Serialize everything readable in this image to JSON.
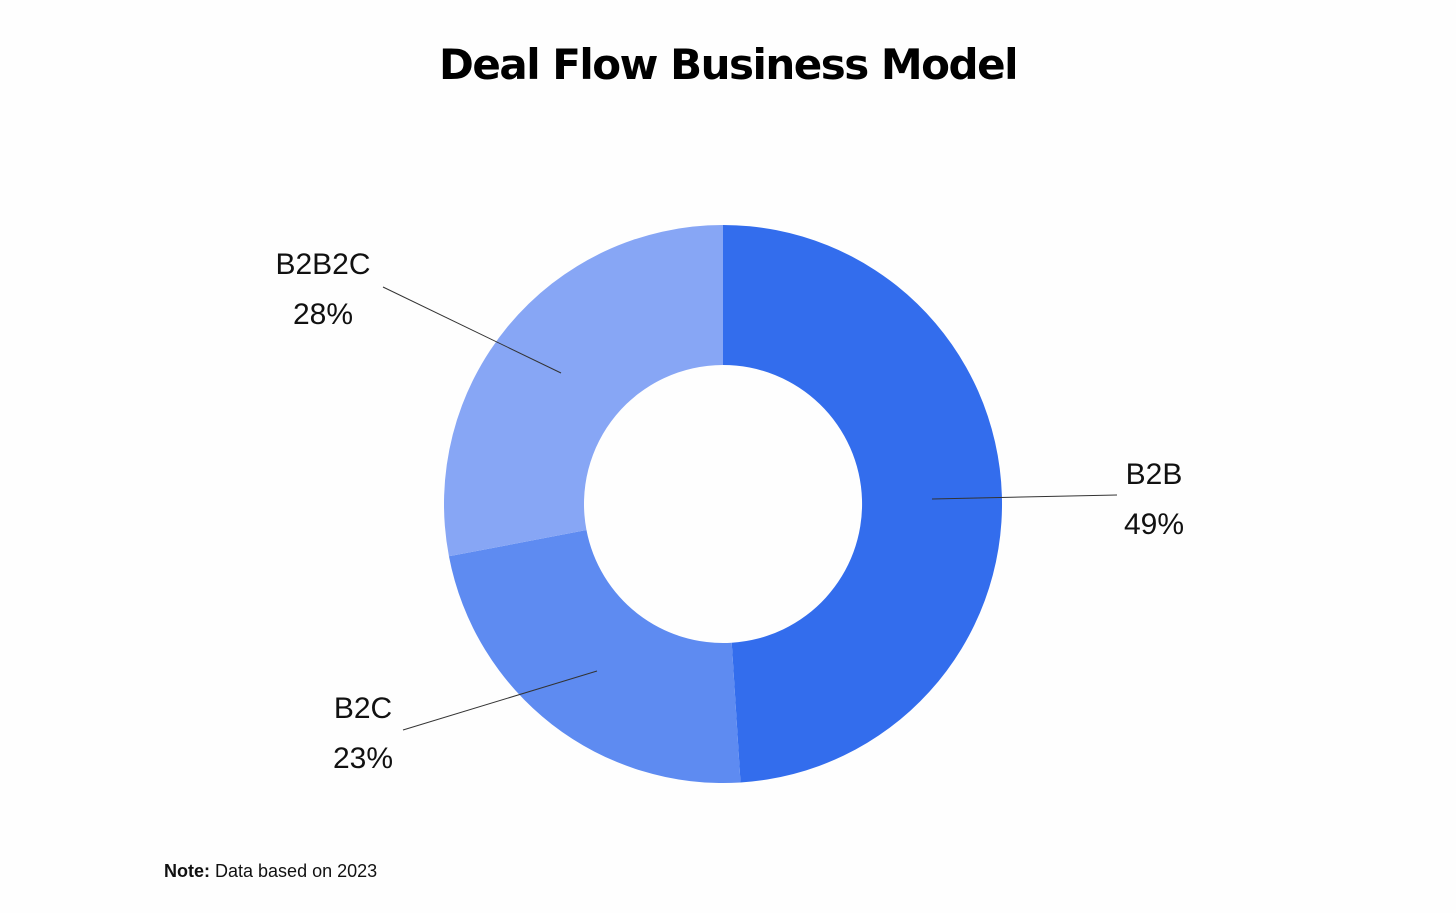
{
  "chart_data": {
    "type": "pie",
    "donut": true,
    "title": "Deal Flow Business Model",
    "start_angle_deg": 0,
    "direction": "clockwise",
    "slices": [
      {
        "name": "B2B",
        "value": 49,
        "label": "49%",
        "color": "#336ded",
        "label_position": "right"
      },
      {
        "name": "B2C",
        "value": 23,
        "label": "23%",
        "color": "#5e8bf1",
        "label_position": "bottom-left"
      },
      {
        "name": "B2B2C",
        "value": 28,
        "label": "28%",
        "color": "#87a6f5",
        "label_position": "top-left"
      }
    ],
    "legend": "none"
  },
  "footnote": {
    "label": "Note:",
    "text": "Data based on 2023"
  }
}
